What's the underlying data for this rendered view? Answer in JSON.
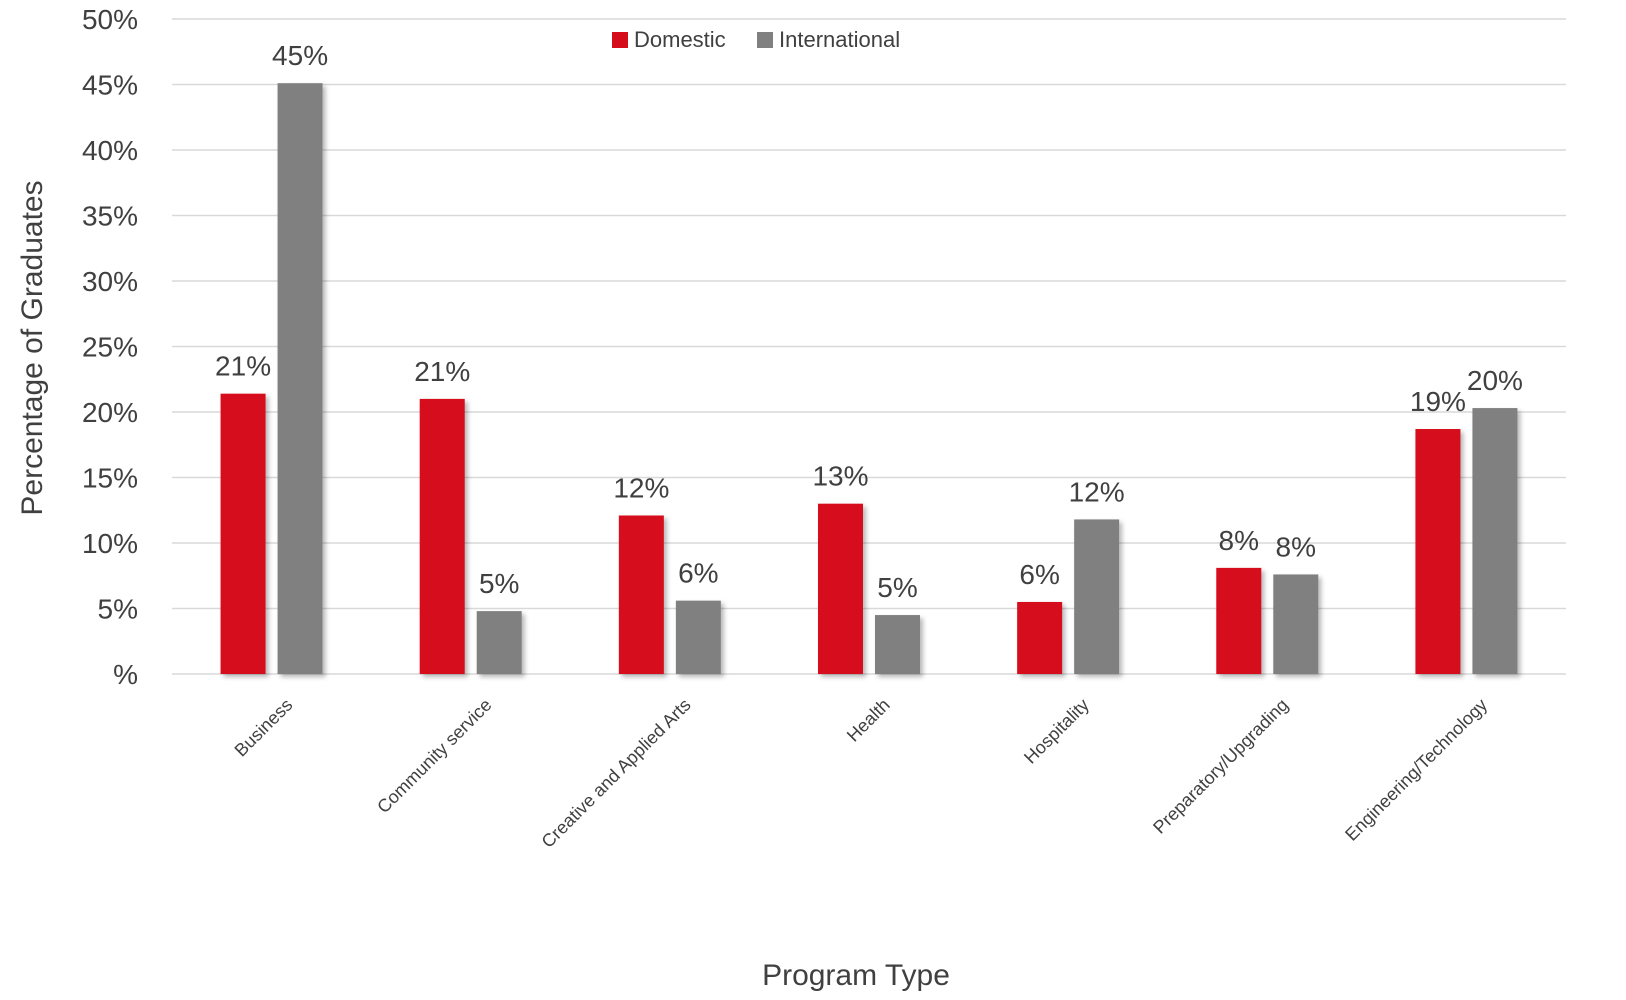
{
  "chart_data": {
    "type": "bar",
    "xlabel": "Program Type",
    "ylabel": "Percentage of Graduates",
    "ylim": [
      0,
      50
    ],
    "yticks": [
      "%",
      "5%",
      "10%",
      "15%",
      "20%",
      "25%",
      "30%",
      "35%",
      "40%",
      "45%",
      "50%"
    ],
    "grid": true,
    "legend_position": "top-center",
    "categories": [
      "Business",
      "Community service",
      "Creative and Applied Arts",
      "Health",
      "Hospitality",
      "Preparatory/Upgrading",
      "Engineering/Technology"
    ],
    "series": [
      {
        "name": "Domestic",
        "color": "#d50b1a",
        "values": [
          21.4,
          21.0,
          12.1,
          13.0,
          5.5,
          8.1,
          18.7
        ],
        "labels": [
          "21%",
          "21%",
          "12%",
          "13%",
          "6%",
          "8%",
          "19%"
        ]
      },
      {
        "name": "International",
        "color": "#808080",
        "values": [
          45.1,
          4.8,
          5.6,
          4.5,
          11.8,
          7.6,
          20.3
        ],
        "labels": [
          "45%",
          "5%",
          "6%",
          "5%",
          "12%",
          "8%",
          "20%"
        ]
      }
    ]
  }
}
